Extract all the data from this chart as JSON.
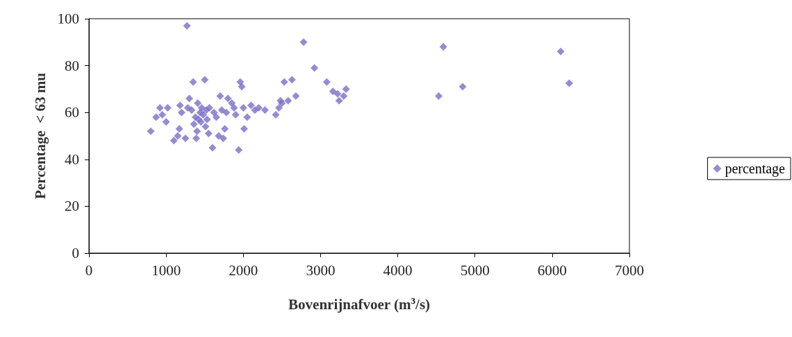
{
  "chart_data": {
    "type": "scatter",
    "xlabel": "Bovenrijnafvoer (m$^{3}$/s)",
    "ylabel": "Percentage  < 63 mu",
    "x": [
      800,
      870,
      920,
      950,
      1000,
      1020,
      1100,
      1150,
      1170,
      1180,
      1200,
      1250,
      1270,
      1280,
      1300,
      1330,
      1350,
      1360,
      1380,
      1390,
      1400,
      1410,
      1420,
      1440,
      1450,
      1460,
      1480,
      1500,
      1510,
      1520,
      1530,
      1550,
      1560,
      1600,
      1620,
      1650,
      1680,
      1700,
      1720,
      1740,
      1760,
      1780,
      1800,
      1850,
      1880,
      1900,
      1940,
      1960,
      1980,
      2000,
      2010,
      2050,
      2100,
      2150,
      2200,
      2280,
      2420,
      2460,
      2480,
      2500,
      2530,
      2580,
      2630,
      2680,
      2780,
      2920,
      3080,
      3160,
      3220,
      3240,
      3300,
      3330,
      4530,
      4590,
      4840,
      6110,
      6220
    ],
    "series": [
      {
        "name": "percentage",
        "color": "#7b6fc4",
        "values": [
          52,
          58,
          62,
          59,
          56,
          62,
          48,
          50,
          53,
          63,
          60,
          49,
          97,
          62,
          66,
          61,
          73,
          55,
          58,
          49,
          52,
          64,
          57,
          60,
          56,
          62,
          59,
          74,
          54,
          61,
          57,
          51,
          62,
          45,
          60,
          58,
          50,
          67,
          61,
          49,
          53,
          60,
          66,
          64,
          62,
          59,
          44,
          73,
          71,
          62,
          53,
          58,
          63,
          61,
          62,
          61,
          59,
          62,
          65,
          64,
          73,
          65,
          74,
          67,
          90,
          79,
          73,
          69,
          68,
          65,
          67,
          70,
          67,
          88,
          71,
          86,
          72.5
        ]
      }
    ],
    "xlim": [
      0,
      7000
    ],
    "xticks": [
      0,
      1000,
      2000,
      3000,
      4000,
      5000,
      6000,
      7000
    ],
    "ylim": [
      0,
      100
    ],
    "yticks": [
      0,
      20,
      40,
      60,
      80,
      100
    ],
    "grid": false,
    "legend": "right",
    "marker": "diamond"
  }
}
